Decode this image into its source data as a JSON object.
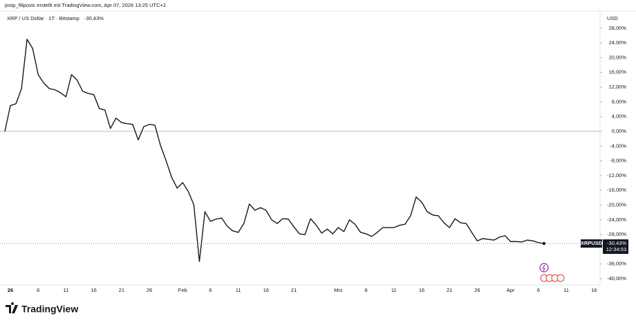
{
  "header": {
    "credit": "josip_filipovic erstellt mit TradingView.com, Apr 07, 2026 13:25 UTC+2",
    "symbol": "XRP / US Dollar · 1T · Bitstamp",
    "currency": "USD"
  },
  "footer": {
    "logo": "TradingView"
  },
  "chart_data": {
    "type": "line",
    "categories": [
      null,
      "26",
      null,
      null,
      null,
      null,
      "6",
      null,
      null,
      null,
      null,
      "11",
      null,
      null,
      null,
      null,
      "16",
      null,
      null,
      null,
      null,
      "21",
      null,
      null,
      null,
      null,
      "26",
      null,
      null,
      null,
      null,
      null,
      "Feb",
      null,
      null,
      null,
      null,
      "6",
      null,
      null,
      null,
      null,
      "11",
      null,
      null,
      null,
      null,
      "16",
      null,
      null,
      null,
      null,
      "21",
      null,
      null,
      null,
      null,
      null,
      null,
      null,
      "Mrz",
      null,
      null,
      null,
      null,
      "6",
      null,
      null,
      null,
      null,
      "11",
      null,
      null,
      null,
      null,
      "16",
      null,
      null,
      null,
      null,
      "21",
      null,
      null,
      null,
      null,
      "26",
      null,
      null,
      null,
      null,
      null,
      "Apr",
      null,
      null,
      null,
      null,
      "6",
      null,
      null,
      null,
      null,
      "11",
      null,
      null,
      null,
      null,
      "16"
    ],
    "series": [
      {
        "name": "XRPUSD",
        "color": "#131722",
        "last_label": "-30,43%",
        "last_time": "12:34:03",
        "values": [
          0,
          7,
          7.5,
          11.6,
          25,
          22.5,
          15.4,
          13.1,
          11.6,
          11.3,
          10.5,
          9.4,
          15.4,
          13.9,
          10.9,
          10.3,
          10,
          6.2,
          5.8,
          0.8,
          3.6,
          2.4,
          2.1,
          1.9,
          -2.3,
          1.3,
          1.9,
          1.7,
          -3.8,
          -7.9,
          -12.4,
          -15.4,
          -13.9,
          -16.3,
          -19.9,
          -35.3,
          -21.8,
          -24.4,
          -23.8,
          -23.5,
          -25.7,
          -27,
          -27.4,
          -25,
          -19.7,
          -21.4,
          -20.7,
          -21.4,
          -24,
          -25,
          -23.7,
          -23.8,
          -25.9,
          -27.8,
          -28,
          -23.7,
          -25.4,
          -27.6,
          -26.5,
          -27.8,
          -26.1,
          -27.2,
          -24,
          -25.2,
          -27.4,
          -27.8,
          -28.5,
          -27.4,
          -26.1,
          -26.1,
          -26.1,
          -25.5,
          -25.2,
          -22.9,
          -17.8,
          -19.2,
          -21.8,
          -22.7,
          -22.9,
          -24.8,
          -26.1,
          -23.7,
          -24.8,
          -25,
          -27.4,
          -29.7,
          -29.1,
          -29.3,
          -29.5,
          -28.7,
          -28.3,
          -29.9,
          -29.9,
          -30,
          -29.5,
          -29.7,
          -30.2,
          -30.43,
          null,
          null,
          null,
          null,
          null,
          null,
          null,
          null,
          null
        ]
      }
    ],
    "ylim": [
      -41.3,
      31.9
    ],
    "yticks": [
      {
        "value": 28,
        "label": "28,00%"
      },
      {
        "value": 24,
        "label": "24,00%"
      },
      {
        "value": 20,
        "label": "20,00%"
      },
      {
        "value": 16,
        "label": "16,00%"
      },
      {
        "value": 12,
        "label": "12,00%"
      },
      {
        "value": 8,
        "label": "8,00%"
      },
      {
        "value": 4,
        "label": "4,00%"
      },
      {
        "value": 0,
        "label": "0,00%"
      },
      {
        "value": -4,
        "label": "-4,00%"
      },
      {
        "value": -8,
        "label": "-8,00%"
      },
      {
        "value": -12,
        "label": "-12,00%"
      },
      {
        "value": -16,
        "label": "-16,00%"
      },
      {
        "value": -20,
        "label": "-20,00%"
      },
      {
        "value": -24,
        "label": "-24,00%"
      },
      {
        "value": -28,
        "label": "-28,00%"
      },
      {
        "value": -36,
        "label": "-36,00%"
      },
      {
        "value": -40,
        "label": "-40,00%"
      }
    ],
    "zero_line": true
  }
}
